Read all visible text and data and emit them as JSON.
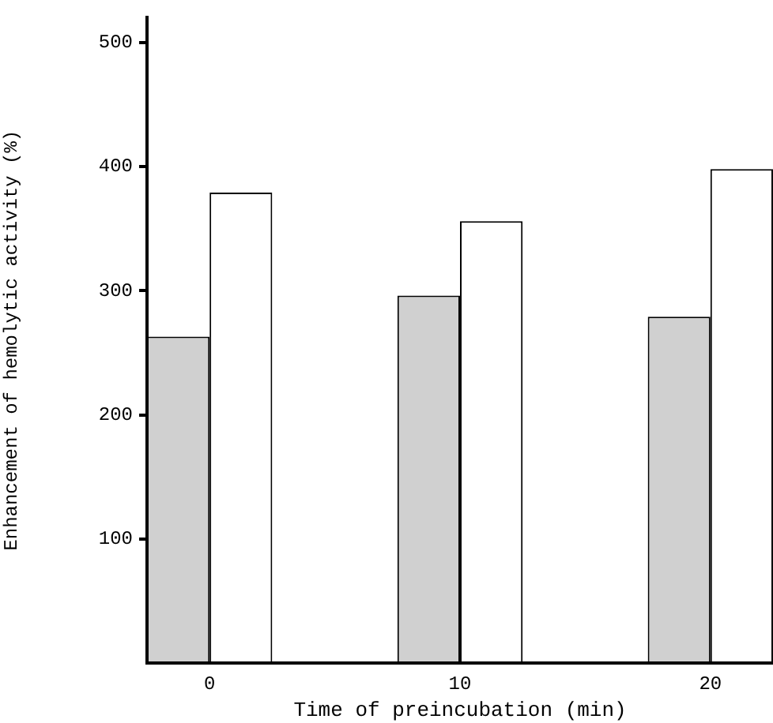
{
  "chart_data": {
    "type": "bar",
    "xlabel": "Time of preincubation (min)",
    "ylabel": "Enhancement of hemolytic activity (%)",
    "x": [
      0,
      10,
      20
    ],
    "xlim": [
      -2.5,
      22.5
    ],
    "xticks": [
      0,
      10,
      20
    ],
    "ylim": [
      0,
      520
    ],
    "yticks": [
      100,
      200,
      300,
      400,
      500
    ],
    "series": [
      {
        "color": "#d0d0d0",
        "values": [
          263,
          296,
          279
        ]
      },
      {
        "color": "#ffffff",
        "values": [
          379,
          356,
          398
        ]
      }
    ],
    "grid": false,
    "legend": false
  }
}
